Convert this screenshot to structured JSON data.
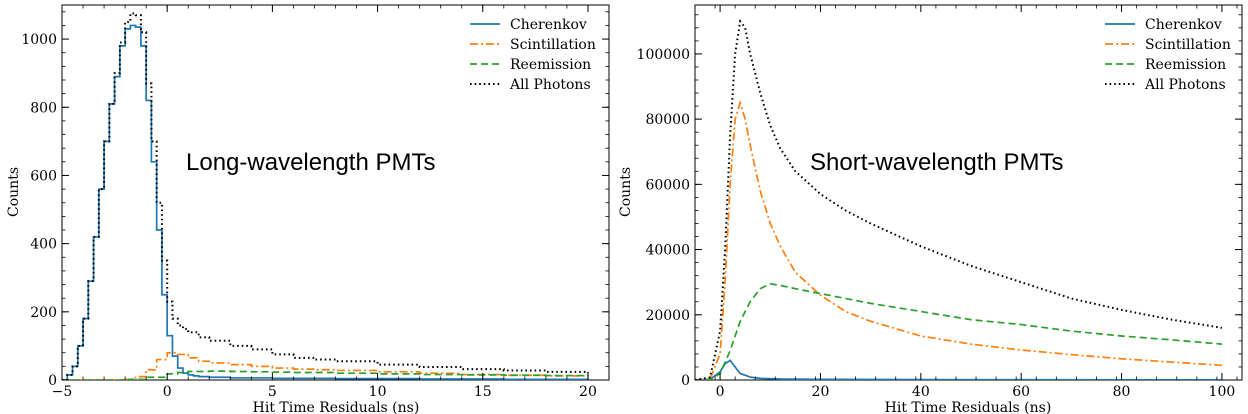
{
  "chart_data": [
    {
      "type": "line",
      "step": true,
      "annotation": "Long-wavelength PMTs",
      "xlabel": "Hit Time Residuals (ns)",
      "ylabel": "Counts",
      "xlim": [
        -5,
        21
      ],
      "ylim": [
        0,
        1100
      ],
      "xticks": [
        -5,
        0,
        5,
        10,
        15,
        20
      ],
      "yticks": [
        0,
        200,
        400,
        600,
        800,
        1000
      ],
      "tick_labels_x": [
        "−5",
        "0",
        "5",
        "10",
        "15",
        "20"
      ],
      "tick_labels_y": [
        "0",
        "200",
        "400",
        "600",
        "800",
        "1000"
      ],
      "legend_position": "top-right",
      "series": [
        {
          "name": "Cherenkov",
          "color": "#1f77b4",
          "dash": "solid",
          "x": [
            -5,
            -4.75,
            -4.5,
            -4.25,
            -4,
            -3.75,
            -3.5,
            -3.25,
            -3,
            -2.75,
            -2.5,
            -2.25,
            -2,
            -1.75,
            -1.5,
            -1.25,
            -1,
            -0.75,
            -0.5,
            -0.25,
            0,
            0.25,
            0.5,
            0.75,
            1,
            1.25,
            1.5,
            2,
            3,
            5,
            8,
            12,
            16,
            20
          ],
          "y": [
            0,
            15,
            40,
            100,
            180,
            290,
            420,
            560,
            700,
            810,
            890,
            980,
            1030,
            1040,
            1035,
            980,
            820,
            640,
            440,
            250,
            130,
            70,
            35,
            20,
            15,
            12,
            10,
            8,
            6,
            5,
            4,
            3,
            2,
            1
          ]
        },
        {
          "name": "Scintillation",
          "color": "#ff7f0e",
          "dash": "dashdot",
          "x": [
            -5,
            -2,
            -1.5,
            -1,
            -0.5,
            0,
            0.5,
            1,
            1.5,
            2,
            3,
            4,
            5,
            6,
            7,
            8,
            10,
            12,
            14,
            16,
            18,
            20
          ],
          "y": [
            0,
            2,
            10,
            30,
            60,
            80,
            75,
            65,
            55,
            50,
            45,
            40,
            35,
            32,
            30,
            28,
            24,
            20,
            16,
            14,
            12,
            10
          ]
        },
        {
          "name": "Reemission",
          "color": "#2ca02c",
          "dash": "dashed",
          "x": [
            -5,
            -2,
            -1,
            0,
            0.5,
            1,
            2,
            3,
            4,
            5,
            6,
            8,
            10,
            12,
            14,
            16,
            18,
            20
          ],
          "y": [
            0,
            2,
            8,
            18,
            22,
            25,
            26,
            25,
            24,
            23,
            22,
            20,
            18,
            16,
            15,
            14,
            13,
            12
          ]
        },
        {
          "name": "All Photons",
          "color": "#000000",
          "dash": "dotted",
          "x": [
            -5,
            -4.75,
            -4.5,
            -4.25,
            -4,
            -3.75,
            -3.5,
            -3.25,
            -3,
            -2.75,
            -2.5,
            -2.25,
            -2,
            -1.75,
            -1.5,
            -1.25,
            -1,
            -0.75,
            -0.5,
            -0.25,
            0,
            0.25,
            0.5,
            0.75,
            1,
            1.5,
            2,
            3,
            4,
            5,
            6,
            7,
            8,
            10,
            12,
            14,
            16,
            18,
            20
          ],
          "y": [
            0,
            15,
            40,
            100,
            180,
            290,
            420,
            560,
            700,
            810,
            900,
            990,
            1050,
            1075,
            1070,
            1020,
            870,
            700,
            520,
            350,
            230,
            180,
            160,
            150,
            140,
            125,
            115,
            100,
            90,
            75,
            65,
            60,
            55,
            45,
            38,
            32,
            28,
            24,
            20
          ]
        }
      ]
    },
    {
      "type": "line",
      "annotation": "Short-wavelength PMTs",
      "xlabel": "Hit Time Residuals (ns)",
      "ylabel": "Counts",
      "xlim": [
        -5,
        104
      ],
      "ylim": [
        0,
        115000
      ],
      "xticks": [
        0,
        20,
        40,
        60,
        80,
        100
      ],
      "yticks": [
        0,
        20000,
        40000,
        60000,
        80000,
        100000
      ],
      "tick_labels_x": [
        "0",
        "20",
        "40",
        "60",
        "80",
        "100"
      ],
      "tick_labels_y": [
        "0",
        "20000",
        "40000",
        "60000",
        "80000",
        "100000"
      ],
      "legend_position": "top-right",
      "series": [
        {
          "name": "Cherenkov",
          "color": "#1f77b4",
          "dash": "solid",
          "x": [
            -5,
            -2,
            0,
            1,
            2,
            3,
            4,
            6,
            8,
            12,
            20,
            40,
            60,
            80,
            100
          ],
          "y": [
            0,
            200,
            2500,
            5000,
            6000,
            4000,
            2000,
            900,
            500,
            300,
            200,
            120,
            80,
            50,
            30
          ]
        },
        {
          "name": "Scintillation",
          "color": "#ff7f0e",
          "dash": "dashdot",
          "x": [
            -5,
            -2,
            0,
            1,
            2,
            3,
            4,
            5,
            6,
            8,
            10,
            12,
            15,
            20,
            25,
            30,
            40,
            50,
            60,
            70,
            80,
            90,
            100
          ],
          "y": [
            0,
            300,
            8000,
            30000,
            60000,
            80000,
            85000,
            80000,
            72000,
            58000,
            48000,
            41000,
            33000,
            26000,
            21000,
            18000,
            13500,
            11000,
            9200,
            7800,
            6500,
            5500,
            4500
          ]
        },
        {
          "name": "Reemission",
          "color": "#2ca02c",
          "dash": "dashed",
          "x": [
            -5,
            -2,
            0,
            2,
            4,
            6,
            8,
            10,
            12,
            15,
            20,
            30,
            40,
            50,
            60,
            70,
            80,
            90,
            100
          ],
          "y": [
            0,
            100,
            2000,
            9000,
            18000,
            24000,
            28000,
            29500,
            29000,
            28000,
            26500,
            23500,
            21000,
            18500,
            17000,
            15000,
            13500,
            12300,
            11000
          ]
        },
        {
          "name": "All Photons",
          "color": "#000000",
          "dash": "dotted",
          "x": [
            -5,
            -2,
            0,
            1,
            2,
            3,
            4,
            5,
            6,
            8,
            10,
            12,
            15,
            20,
            25,
            30,
            40,
            50,
            60,
            70,
            80,
            90,
            100
          ],
          "y": [
            0,
            800,
            15000,
            40000,
            75000,
            100000,
            110000,
            108000,
            100000,
            88000,
            78000,
            71000,
            64000,
            57000,
            52000,
            48000,
            41000,
            35000,
            30000,
            25000,
            21500,
            18500,
            16000
          ]
        }
      ]
    }
  ]
}
